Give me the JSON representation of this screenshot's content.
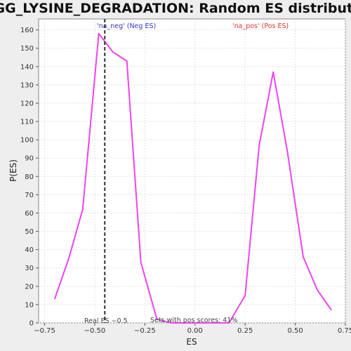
{
  "chart_data": {
    "type": "line",
    "title": "KEGG_LYSINE_DEGRADATION: Random ES distribution",
    "xlabel": "ES",
    "ylabel": "P(ES)",
    "xlim": [
      -0.78,
      0.75
    ],
    "ylim": [
      0,
      166
    ],
    "x_ticks": [
      -0.75,
      -0.5,
      -0.25,
      0.0,
      0.25,
      0.5,
      0.75
    ],
    "x_tick_labels": [
      "−0.75",
      "−0.50",
      "−0.25",
      "0.00",
      "0.25",
      "0.50",
      "0.75"
    ],
    "y_ticks": [
      0,
      10,
      20,
      30,
      40,
      50,
      60,
      70,
      80,
      90,
      100,
      110,
      120,
      130,
      140,
      150,
      160
    ],
    "y_tick_labels": [
      "0",
      "10",
      "20",
      "30",
      "40",
      "50",
      "60",
      "70",
      "80",
      "90",
      "100",
      "110",
      "120",
      "130",
      "140",
      "150",
      "160"
    ],
    "grid": true,
    "series": [
      {
        "color": "#ee44ee",
        "x": [
          -0.7,
          -0.63,
          -0.56,
          -0.48,
          -0.41,
          -0.34,
          -0.27,
          -0.19,
          -0.12,
          0.02,
          0.17,
          0.25,
          0.32,
          0.39,
          0.46,
          0.54,
          0.61,
          0.68
        ],
        "y": [
          13,
          35,
          62,
          158,
          148,
          143,
          33,
          2,
          0,
          0,
          0,
          15,
          97,
          137,
          94,
          36,
          18,
          7
        ]
      }
    ],
    "real_es": -0.45,
    "annotations": {
      "neg_label": "'na_neg' (Neg ES)",
      "neg_color": "#3333cc",
      "pos_label": "'na_pos' (Pos ES)",
      "pos_color": "#dd3333",
      "real_es_label": "Real ES −0.5",
      "pos_scores_label": "Sets with pos scores: 41%"
    }
  }
}
